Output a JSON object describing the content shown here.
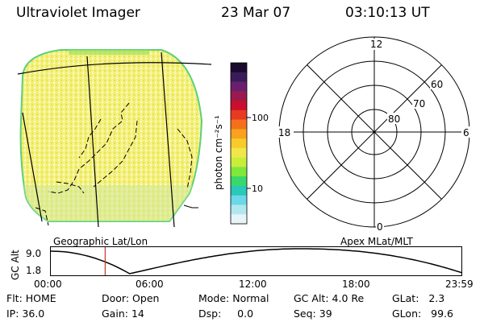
{
  "header": {
    "title": "Ultraviolet Imager",
    "date": "23 Mar 07",
    "time": "03:10:13 UT"
  },
  "colorbar": {
    "unit": "photon cm⁻²s⁻¹",
    "ticks": [
      "100",
      "10"
    ],
    "colors": [
      "#1a0a2e",
      "#3a1b5a",
      "#6a1f6e",
      "#9a1a50",
      "#c8102e",
      "#e83a20",
      "#f5701a",
      "#f8a21e",
      "#f6cb2a",
      "#f0e84a",
      "#c8ee3a",
      "#7fe83a",
      "#38d86a",
      "#2ac8b8",
      "#6ad8e8",
      "#b0e8f0",
      "#e8f4f8"
    ]
  },
  "polar": {
    "hours": {
      "top": "12",
      "left": "18",
      "right": "6",
      "bottom": "0"
    },
    "lat_rings": [
      "60",
      "70",
      "80"
    ]
  },
  "labels": {
    "geo": "Geographic Lat/Lon",
    "apex": "Apex MLat/MLT"
  },
  "altplot": {
    "ylabel": "GC Alt",
    "yticks": [
      "9.0",
      "1.8"
    ],
    "xticks": [
      "00:00",
      "06:00",
      "12:00",
      "18:00",
      "23:59"
    ],
    "curve_color": "#000000",
    "marker_color": "#c0392b",
    "marker_time_hours": 3.17
  },
  "status": {
    "row1": [
      {
        "k": "Flt:",
        "v": "HOME"
      },
      {
        "k": "Door:",
        "v": "Open"
      },
      {
        "k": "Mode:",
        "v": "Normal"
      },
      {
        "k": "GC Alt:",
        "v": "4.0 Re"
      },
      {
        "k": "GLat:",
        "v": "2.3"
      }
    ],
    "row2": [
      {
        "k": "IP:",
        "v": "36.0"
      },
      {
        "k": "Gain:",
        "v": "14"
      },
      {
        "k": "Dsp:",
        "v": "0.0"
      },
      {
        "k": "Seq:",
        "v": "39"
      },
      {
        "k": "GLon:",
        "v": "99.6"
      }
    ]
  }
}
